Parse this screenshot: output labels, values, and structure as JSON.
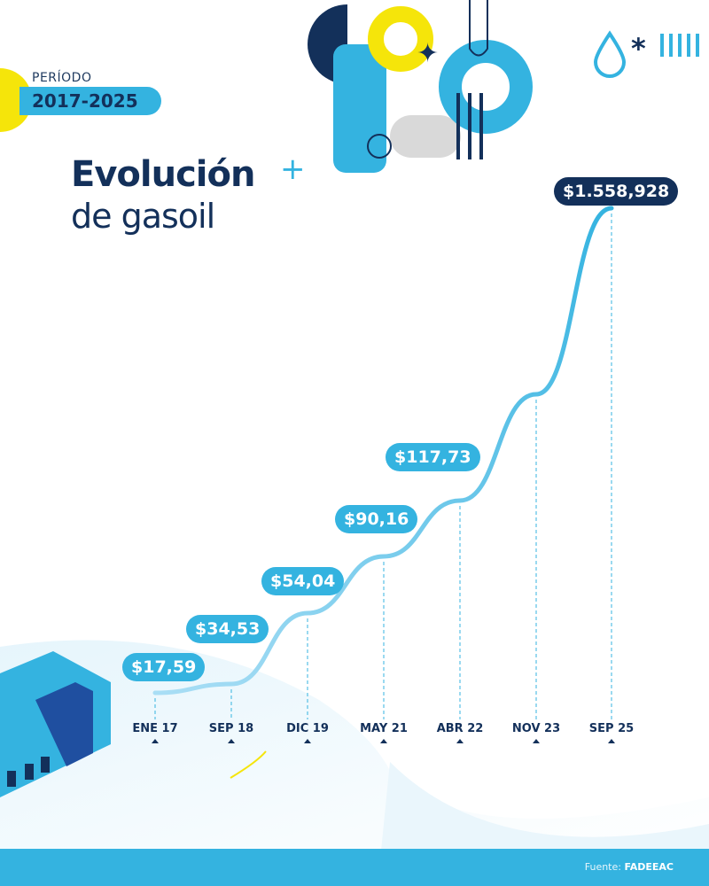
{
  "header": {
    "period_label": "PERÍODO",
    "period_value": "2017-2025",
    "title_line1": "Evolución",
    "title_line2": "de gasoil"
  },
  "footer": {
    "source_label": "Fuente:",
    "source_value": "FADEEAC"
  },
  "colors": {
    "navy": "#13305a",
    "accent": "#34b3e0",
    "yellow": "#f5e50a",
    "footer": "#34b3e0"
  },
  "chart_data": {
    "type": "line",
    "title": "Evolución de gasoil",
    "categories": [
      "ENE 17",
      "SEP 18",
      "DIC 19",
      "MAY 21",
      "ABR 22",
      "NOV 23",
      "SEP 25"
    ],
    "values": [
      17.59,
      34.53,
      54.04,
      90.16,
      117.73,
      null,
      1558.928
    ],
    "data_labels": [
      "$17,59",
      "$34,53",
      "$54,04",
      "$90,16",
      "$117,73",
      "",
      "$1.558,928"
    ],
    "grid": false,
    "legend": "none"
  }
}
